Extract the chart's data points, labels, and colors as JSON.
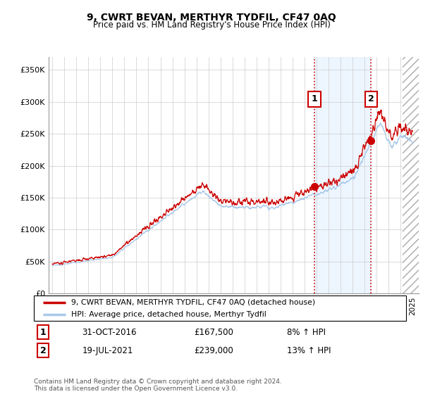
{
  "title": "9, CWRT BEVAN, MERTHYR TYDFIL, CF47 0AQ",
  "subtitle": "Price paid vs. HM Land Registry's House Price Index (HPI)",
  "ylabel_ticks": [
    "£0",
    "£50K",
    "£100K",
    "£150K",
    "£200K",
    "£250K",
    "£300K",
    "£350K"
  ],
  "ytick_values": [
    0,
    50000,
    100000,
    150000,
    200000,
    250000,
    300000,
    350000
  ],
  "ylim": [
    0,
    370000
  ],
  "legend_line1": "9, CWRT BEVAN, MERTHYR TYDFIL, CF47 0AQ (detached house)",
  "legend_line2": "HPI: Average price, detached house, Merthyr Tydfil",
  "marker1_label": "1",
  "marker1_date": "31-OCT-2016",
  "marker1_price": "£167,500",
  "marker1_hpi": "8% ↑ HPI",
  "marker1_x": 2016.83,
  "marker1_y": 167500,
  "marker2_label": "2",
  "marker2_date": "19-JUL-2021",
  "marker2_price": "£239,000",
  "marker2_hpi": "13% ↑ HPI",
  "marker2_x": 2021.54,
  "marker2_y": 239000,
  "footer": "Contains HM Land Registry data © Crown copyright and database right 2024.\nThis data is licensed under the Open Government Licence v3.0.",
  "hpi_color": "#a8c8e8",
  "price_color": "#cc0000",
  "marker_color": "#cc0000",
  "vline_color": "#cc0000",
  "background_color": "#ffffff",
  "grid_color": "#cccccc",
  "shade_color": "#ddeeff",
  "hatch_color": "#aaaaaa",
  "xlim_start": 1994.7,
  "xlim_end": 2025.5,
  "hatch_start": 2024.17,
  "shade_start": 2016.83,
  "shade_end": 2021.54
}
